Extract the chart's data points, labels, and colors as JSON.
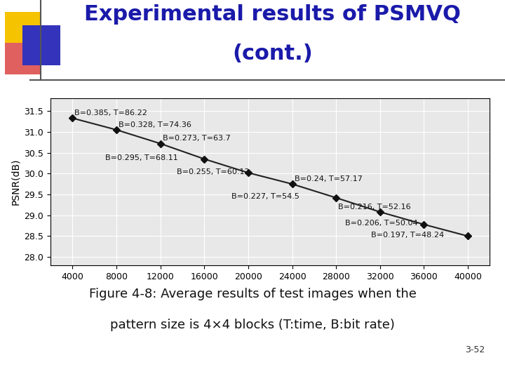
{
  "title_line1": "Experimental results of PSMVQ",
  "title_line2": "(cont.)",
  "title_color": "#1a1aaa",
  "title_fontsize": 22,
  "ylabel": "PSNR(dB)",
  "xlim": [
    2000,
    42000
  ],
  "ylim": [
    27.8,
    31.8
  ],
  "xticks": [
    4000,
    8000,
    12000,
    16000,
    20000,
    24000,
    28000,
    32000,
    36000,
    40000
  ],
  "yticks": [
    28,
    28.5,
    29,
    29.5,
    30,
    30.5,
    31,
    31.5
  ],
  "data_x": [
    4000,
    8000,
    12000,
    16000,
    20000,
    24000,
    28000,
    32000,
    36000,
    40000
  ],
  "data_y": [
    31.33,
    31.05,
    30.72,
    30.35,
    30.02,
    29.75,
    29.42,
    29.08,
    28.78,
    28.5
  ],
  "caption_line1": "Figure 4-8: Average results of test images when the",
  "caption_line2": "pattern size is 4×4 blocks (T:time, B:bit rate)",
  "page_number": "3-52",
  "bg_color": "#ffffff",
  "plot_bg_color": "#e8e8e8",
  "line_color": "#222222",
  "marker_color": "#111111",
  "grid_color": "#ffffff",
  "axis_label_fontsize": 10,
  "tick_fontsize": 9,
  "annotation_fontsize": 8,
  "caption_fontsize": 13,
  "yellow_sq": "#f5c300",
  "red_sq": "#e06060",
  "blue_sq": "#3333bb",
  "deco_line_color": "#555555"
}
